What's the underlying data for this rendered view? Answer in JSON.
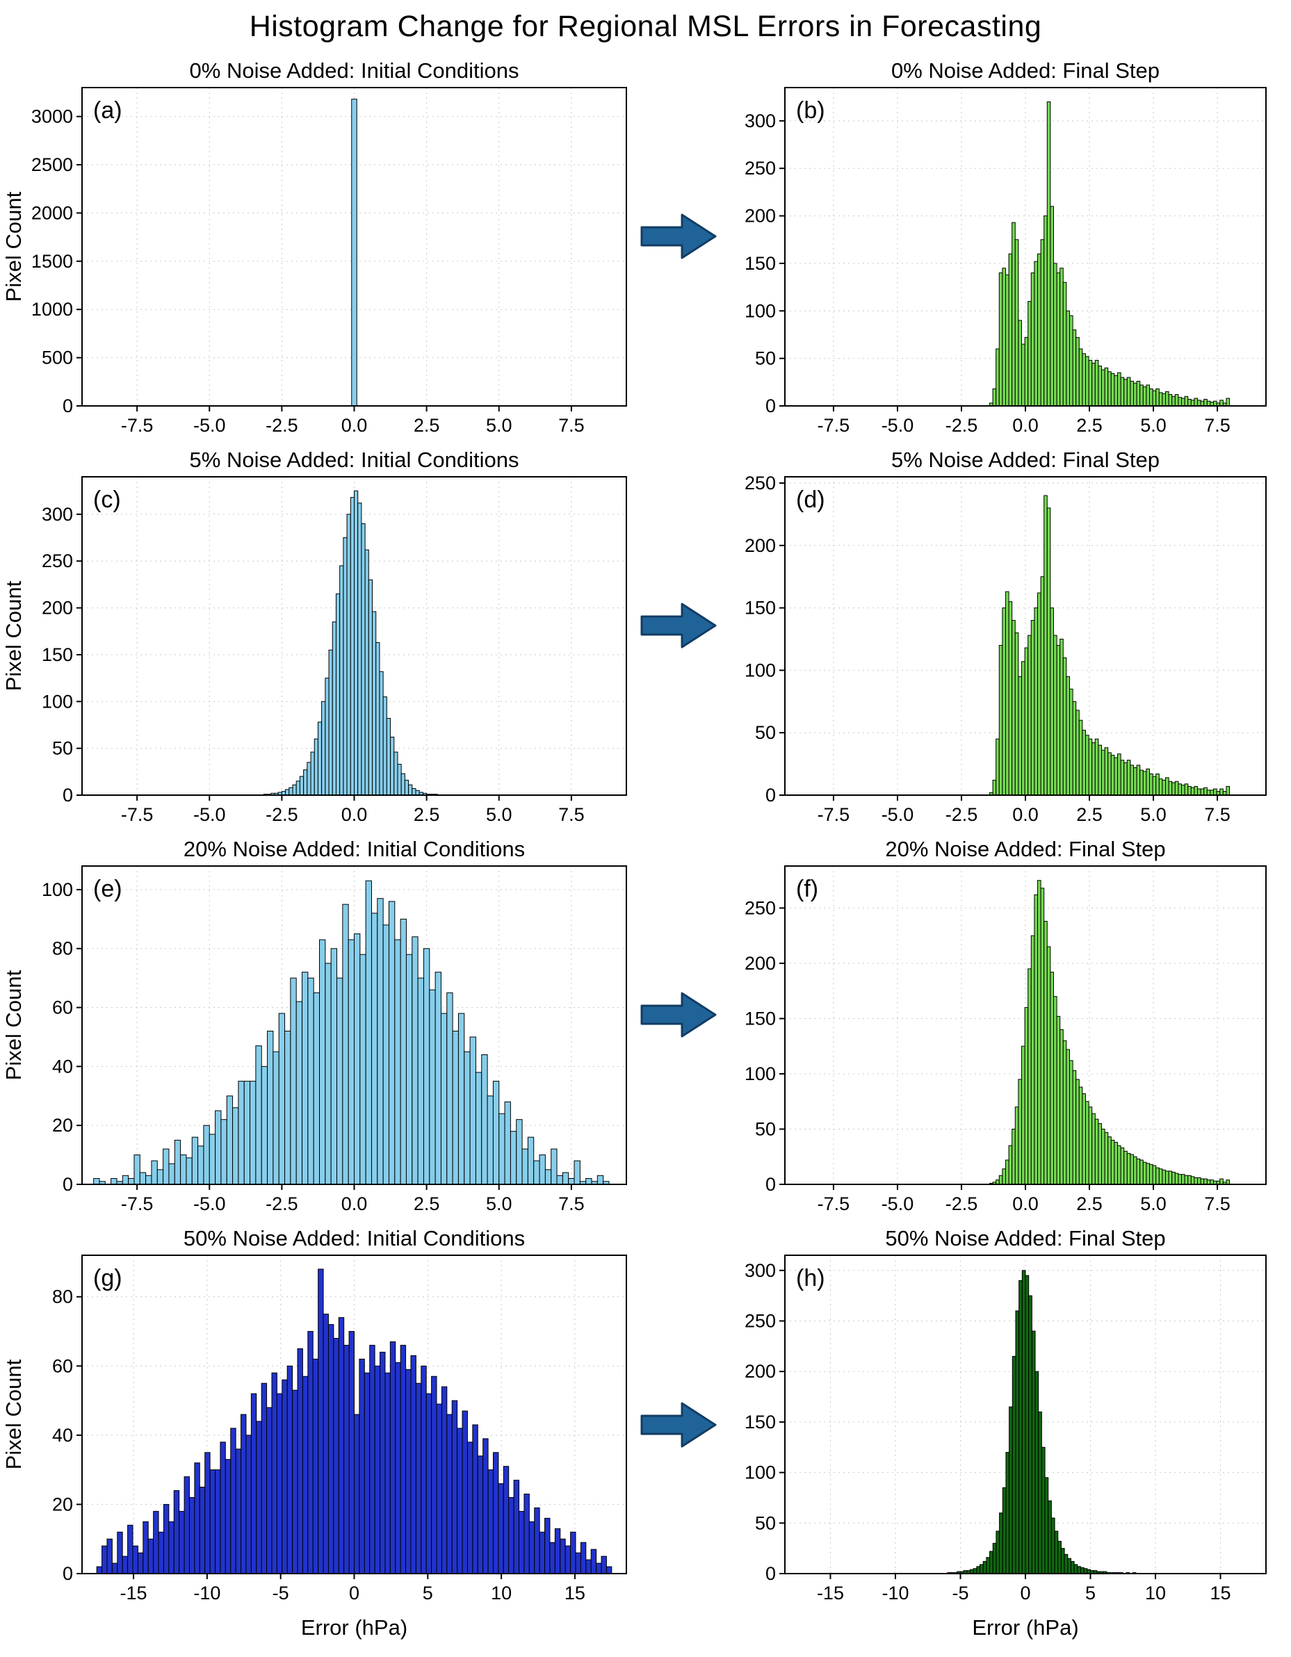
{
  "page": {
    "title": "Histogram Change for Regional MSL Errors in Forecasting"
  },
  "arrow": {
    "color": "#1f6398"
  },
  "axis_labels": {
    "y": "Pixel Count",
    "x": "Error (hPa)"
  },
  "chart_data": [
    {
      "type": "bar",
      "panel": "(a)",
      "title": "0% Noise Added: Initial Conditions",
      "color": "#87CEEB",
      "edge": "#000000",
      "ylabel": "Pixel Count",
      "xlim": [
        -9.4,
        9.4
      ],
      "ylim": [
        0,
        3300
      ],
      "xticks": [
        -7.5,
        -5.0,
        -2.5,
        0.0,
        2.5,
        5.0,
        7.5
      ],
      "xtick_labels": [
        "-7.5",
        "-5.0",
        "-2.5",
        "0.0",
        "2.5",
        "5.0",
        "7.5"
      ],
      "yticks": [
        0,
        500,
        1000,
        1500,
        2000,
        2500,
        3000
      ],
      "ytick_labels": [
        "0",
        "500",
        "1000",
        "1500",
        "2000",
        "2500",
        "3000"
      ],
      "bin_start": -0.09,
      "bin_width": 0.18,
      "counts": [
        3180
      ]
    },
    {
      "type": "bar",
      "panel": "(b)",
      "title": "0% Noise Added: Final Step",
      "color": "#76d852",
      "edge": "#000000",
      "xlim": [
        -9.4,
        9.4
      ],
      "ylim": [
        0,
        335
      ],
      "xticks": [
        -7.5,
        -5.0,
        -2.5,
        0.0,
        2.5,
        5.0,
        7.5
      ],
      "xtick_labels": [
        "-7.5",
        "-5.0",
        "-2.5",
        "0.0",
        "2.5",
        "5.0",
        "7.5"
      ],
      "yticks": [
        0,
        50,
        100,
        150,
        200,
        250,
        300
      ],
      "ytick_labels": [
        "0",
        "50",
        "100",
        "150",
        "200",
        "250",
        "300"
      ],
      "bin_start": -1.4,
      "bin_width": 0.125,
      "counts": [
        3,
        18,
        60,
        140,
        145,
        138,
        160,
        193,
        175,
        90,
        65,
        72,
        110,
        140,
        152,
        160,
        175,
        200,
        320,
        210,
        150,
        140,
        145,
        130,
        100,
        95,
        80,
        72,
        60,
        55,
        52,
        48,
        45,
        48,
        42,
        38,
        40,
        36,
        34,
        32,
        35,
        30,
        28,
        30,
        26,
        24,
        26,
        22,
        20,
        22,
        18,
        16,
        18,
        14,
        13,
        15,
        12,
        10,
        12,
        9,
        8,
        10,
        7,
        6,
        8,
        6,
        5,
        7,
        5,
        4,
        5,
        3,
        6,
        3,
        8
      ]
    },
    {
      "type": "bar",
      "panel": "(c)",
      "title": "5% Noise Added: Initial Conditions",
      "color": "#87CEEB",
      "edge": "#000000",
      "ylabel": "Pixel Count",
      "xlim": [
        -9.4,
        9.4
      ],
      "ylim": [
        0,
        340
      ],
      "xticks": [
        -7.5,
        -5.0,
        -2.5,
        0.0,
        2.5,
        5.0,
        7.5
      ],
      "xtick_labels": [
        "-7.5",
        "-5.0",
        "-2.5",
        "0.0",
        "2.5",
        "5.0",
        "7.5"
      ],
      "yticks": [
        0,
        50,
        100,
        150,
        200,
        250,
        300
      ],
      "ytick_labels": [
        "0",
        "50",
        "100",
        "150",
        "200",
        "250",
        "300"
      ],
      "bin_start": -3.125,
      "bin_width": 0.125,
      "counts": [
        1,
        1,
        2,
        2,
        3,
        4,
        6,
        8,
        11,
        15,
        20,
        27,
        35,
        46,
        60,
        78,
        100,
        125,
        155,
        185,
        215,
        245,
        275,
        300,
        318,
        325,
        312,
        290,
        262,
        230,
        196,
        163,
        132,
        105,
        82,
        62,
        46,
        33,
        23,
        16,
        11,
        7,
        5,
        3,
        2,
        1,
        1,
        1
      ]
    },
    {
      "type": "bar",
      "panel": "(d)",
      "title": "5% Noise Added: Final Step",
      "color": "#76d852",
      "edge": "#000000",
      "xlim": [
        -9.4,
        9.4
      ],
      "ylim": [
        0,
        255
      ],
      "xticks": [
        -7.5,
        -5.0,
        -2.5,
        0.0,
        2.5,
        5.0,
        7.5
      ],
      "xtick_labels": [
        "-7.5",
        "-5.0",
        "-2.5",
        "0.0",
        "2.5",
        "5.0",
        "7.5"
      ],
      "yticks": [
        0,
        50,
        100,
        150,
        200,
        250
      ],
      "ytick_labels": [
        "0",
        "50",
        "100",
        "150",
        "200",
        "250"
      ],
      "bin_start": -1.4,
      "bin_width": 0.125,
      "counts": [
        2,
        12,
        45,
        120,
        150,
        163,
        155,
        140,
        130,
        95,
        107,
        118,
        128,
        140,
        150,
        162,
        175,
        240,
        230,
        150,
        128,
        120,
        125,
        110,
        95,
        85,
        75,
        68,
        60,
        52,
        48,
        45,
        42,
        45,
        40,
        36,
        38,
        34,
        32,
        30,
        33,
        28,
        26,
        28,
        24,
        22,
        24,
        20,
        19,
        21,
        17,
        15,
        17,
        13,
        12,
        14,
        11,
        10,
        11,
        9,
        8,
        9,
        7,
        6,
        7,
        5,
        5,
        6,
        4,
        4,
        5,
        3,
        5,
        3,
        7
      ]
    },
    {
      "type": "bar",
      "panel": "(e)",
      "title": "20% Noise Added: Initial Conditions",
      "color": "#87CEEB",
      "edge": "#000000",
      "ylabel": "Pixel Count",
      "xlim": [
        -9.4,
        9.4
      ],
      "ylim": [
        0,
        108
      ],
      "xticks": [
        -7.5,
        -5.0,
        -2.5,
        0.0,
        2.5,
        5.0,
        7.5
      ],
      "xtick_labels": [
        "-7.5",
        "-5.0",
        "-2.5",
        "0.0",
        "2.5",
        "5.0",
        "7.5"
      ],
      "yticks": [
        0,
        20,
        40,
        60,
        80,
        100
      ],
      "ytick_labels": [
        "0",
        "20",
        "40",
        "60",
        "80",
        "100"
      ],
      "bin_start": -9.0,
      "bin_width": 0.2,
      "counts": [
        2,
        1,
        0,
        2,
        1,
        3,
        2,
        10,
        4,
        3,
        8,
        5,
        12,
        7,
        15,
        10,
        9,
        16,
        13,
        20,
        17,
        25,
        22,
        30,
        26,
        35,
        35,
        35,
        47,
        40,
        52,
        45,
        58,
        52,
        70,
        62,
        72,
        70,
        65,
        83,
        75,
        80,
        70,
        95,
        83,
        85,
        78,
        103,
        92,
        97,
        88,
        96,
        83,
        90,
        78,
        84,
        70,
        80,
        66,
        72,
        58,
        65,
        52,
        58,
        45,
        50,
        38,
        44,
        30,
        35,
        24,
        28,
        18,
        22,
        12,
        16,
        8,
        10,
        5,
        12,
        3,
        4,
        2,
        8,
        1,
        2,
        1,
        3,
        1
      ]
    },
    {
      "type": "bar",
      "panel": "(f)",
      "title": "20% Noise Added: Final Step",
      "color": "#76d852",
      "edge": "#000000",
      "xlim": [
        -9.4,
        9.4
      ],
      "ylim": [
        0,
        288
      ],
      "xticks": [
        -7.5,
        -5.0,
        -2.5,
        0.0,
        2.5,
        5.0,
        7.5
      ],
      "xtick_labels": [
        "-7.5",
        "-5.0",
        "-2.5",
        "0.0",
        "2.5",
        "5.0",
        "7.5"
      ],
      "yticks": [
        0,
        50,
        100,
        150,
        200,
        250
      ],
      "ytick_labels": [
        "0",
        "50",
        "100",
        "150",
        "200",
        "250"
      ],
      "bin_start": -1.4,
      "bin_width": 0.125,
      "counts": [
        1,
        2,
        4,
        8,
        14,
        22,
        35,
        50,
        70,
        95,
        125,
        160,
        195,
        225,
        262,
        275,
        268,
        238,
        215,
        192,
        170,
        152,
        140,
        130,
        122,
        112,
        103,
        95,
        88,
        82,
        75,
        70,
        64,
        59,
        55,
        50,
        47,
        43,
        40,
        38,
        35,
        33,
        30,
        28,
        27,
        25,
        23,
        22,
        20,
        19,
        18,
        17,
        15,
        14,
        13,
        12,
        12,
        11,
        10,
        9,
        9,
        8,
        8,
        7,
        6,
        6,
        5,
        5,
        4,
        4,
        3,
        3,
        5,
        2,
        4
      ]
    },
    {
      "type": "bar",
      "panel": "(g)",
      "title": "50% Noise Added: Initial Conditions",
      "color": "#2233CC",
      "edge": "#000000",
      "ylabel": "Pixel Count",
      "xlabel": "Error (hPa)",
      "xlim": [
        -18.5,
        18.5
      ],
      "ylim": [
        0,
        92
      ],
      "xticks": [
        -15,
        -10,
        -5,
        0,
        5,
        10,
        15
      ],
      "xtick_labels": [
        "-15",
        "-10",
        "-5",
        "0",
        "5",
        "10",
        "15"
      ],
      "yticks": [
        0,
        20,
        40,
        60,
        80
      ],
      "ytick_labels": [
        "0",
        "20",
        "40",
        "60",
        "80"
      ],
      "bin_start": -17.5,
      "bin_width": 0.35,
      "counts": [
        2,
        8,
        10,
        3,
        12,
        5,
        14,
        8,
        6,
        15,
        10,
        18,
        12,
        20,
        15,
        24,
        18,
        28,
        22,
        32,
        25,
        35,
        30,
        30,
        38,
        33,
        42,
        36,
        46,
        40,
        52,
        44,
        55,
        48,
        58,
        52,
        56,
        60,
        53,
        65,
        57,
        70,
        62,
        88,
        75,
        72,
        68,
        74,
        66,
        70,
        46,
        62,
        58,
        66,
        60,
        64,
        58,
        67,
        61,
        66,
        59,
        63,
        55,
        60,
        52,
        57,
        49,
        54,
        46,
        50,
        42,
        47,
        38,
        43,
        34,
        39,
        30,
        35,
        26,
        31,
        22,
        27,
        18,
        23,
        15,
        19,
        12,
        16,
        9,
        13,
        10,
        8,
        12,
        6,
        9,
        4,
        7,
        3,
        5,
        2
      ]
    },
    {
      "type": "bar",
      "panel": "(h)",
      "title": "50% Noise Added: Final Step",
      "color": "#116611",
      "edge": "#000000",
      "xlabel": "Error (hPa)",
      "xlim": [
        -18.5,
        18.5
      ],
      "ylim": [
        0,
        315
      ],
      "xticks": [
        -15,
        -10,
        -5,
        0,
        5,
        10,
        15
      ],
      "xtick_labels": [
        "-15",
        "-10",
        "-5",
        "0",
        "5",
        "10",
        "15"
      ],
      "yticks": [
        0,
        50,
        100,
        150,
        200,
        250,
        300
      ],
      "ytick_labels": [
        "0",
        "50",
        "100",
        "150",
        "200",
        "250",
        "300"
      ],
      "bin_start": -6.0,
      "bin_width": 0.25,
      "counts": [
        1,
        1,
        1,
        2,
        2,
        3,
        3,
        4,
        5,
        7,
        9,
        12,
        16,
        22,
        30,
        42,
        60,
        85,
        120,
        165,
        215,
        260,
        290,
        300,
        295,
        275,
        240,
        200,
        160,
        125,
        95,
        72,
        55,
        42,
        32,
        25,
        19,
        15,
        12,
        9,
        7,
        6,
        5,
        4,
        3,
        3,
        2,
        2,
        2,
        1,
        1,
        1,
        1,
        1,
        0,
        1,
        0,
        1
      ]
    }
  ]
}
